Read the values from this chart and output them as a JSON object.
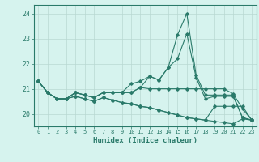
{
  "xlabel": "Humidex (Indice chaleur)",
  "x": [
    0,
    1,
    2,
    3,
    4,
    5,
    6,
    7,
    8,
    9,
    10,
    11,
    12,
    13,
    14,
    15,
    16,
    17,
    18,
    19,
    20,
    21,
    22,
    23
  ],
  "lines": [
    [
      21.3,
      20.85,
      20.6,
      20.6,
      20.85,
      20.75,
      20.65,
      20.85,
      20.85,
      20.85,
      21.2,
      21.3,
      21.5,
      21.35,
      21.85,
      23.15,
      24.0,
      21.55,
      20.75,
      20.75,
      20.75,
      20.75,
      19.85,
      19.75
    ],
    [
      21.3,
      20.85,
      20.6,
      20.6,
      20.85,
      20.75,
      20.65,
      20.85,
      20.85,
      20.85,
      20.85,
      21.05,
      21.5,
      21.35,
      21.85,
      22.2,
      23.2,
      21.45,
      20.6,
      20.7,
      20.7,
      20.7,
      19.85,
      19.75
    ],
    [
      21.3,
      20.85,
      20.6,
      20.6,
      20.85,
      20.75,
      20.65,
      20.85,
      20.85,
      20.85,
      20.85,
      21.05,
      21.0,
      21.0,
      21.0,
      21.0,
      21.0,
      21.0,
      21.0,
      21.0,
      21.0,
      20.8,
      20.2,
      19.75
    ],
    [
      21.3,
      20.85,
      20.6,
      20.6,
      20.7,
      20.6,
      20.5,
      20.65,
      20.55,
      20.45,
      20.4,
      20.3,
      20.25,
      20.15,
      20.05,
      19.95,
      19.85,
      19.8,
      19.75,
      19.7,
      19.65,
      19.6,
      19.8,
      19.75
    ],
    [
      21.3,
      20.85,
      20.6,
      20.6,
      20.7,
      20.6,
      20.5,
      20.65,
      20.55,
      20.45,
      20.4,
      20.3,
      20.25,
      20.15,
      20.05,
      19.95,
      19.85,
      19.8,
      19.75,
      20.3,
      20.3,
      20.3,
      20.3,
      19.75
    ]
  ],
  "line_color": "#2a7a6a",
  "bg_color": "#d6f3ee",
  "grid_major_color": "#b8d8d2",
  "grid_minor_color": "#cce8e3",
  "axis_color": "#2a7a6a",
  "tick_color": "#2a7a6a",
  "ylim": [
    19.5,
    24.35
  ],
  "yticks": [
    20,
    21,
    22,
    23,
    24
  ],
  "xlim": [
    -0.5,
    23.5
  ]
}
